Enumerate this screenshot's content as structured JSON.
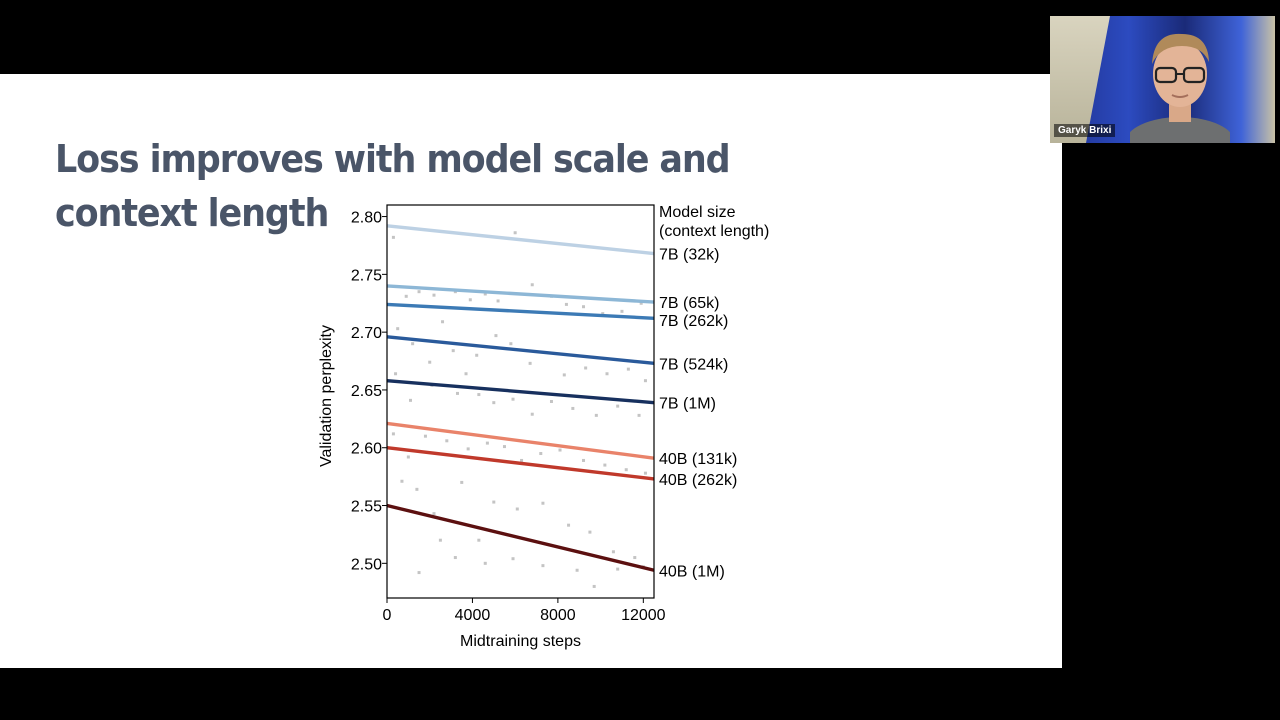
{
  "slide": {
    "title": "Loss improves with model scale and context length"
  },
  "video": {
    "participant_name": "Garyk Brixi"
  },
  "chart_data": {
    "type": "line",
    "xlabel": "Midtraining steps",
    "ylabel": "Validation perplexity",
    "xlim": [
      0,
      12500
    ],
    "ylim": [
      2.47,
      2.81
    ],
    "x_ticks": [
      0,
      4000,
      8000,
      12000
    ],
    "y_ticks": [
      2.5,
      2.55,
      2.6,
      2.65,
      2.7,
      2.75,
      2.8
    ],
    "legend_title_line1": "Model size",
    "legend_title_line2": "(context length)",
    "grid": false,
    "series": [
      {
        "name": "7B (32k)",
        "x": [
          0,
          12500
        ],
        "values": [
          2.792,
          2.768
        ],
        "color": "#bdd1e4"
      },
      {
        "name": "7B (65k)",
        "x": [
          0,
          12500
        ],
        "values": [
          2.74,
          2.726
        ],
        "color": "#8db7d6"
      },
      {
        "name": "7B (262k)",
        "x": [
          0,
          12500
        ],
        "values": [
          2.724,
          2.712
        ],
        "color": "#3c7ab5"
      },
      {
        "name": "7B (524k)",
        "x": [
          0,
          12500
        ],
        "values": [
          2.696,
          2.673
        ],
        "color": "#2a5a9b"
      },
      {
        "name": "7B (1M)",
        "x": [
          0,
          12500
        ],
        "values": [
          2.658,
          2.639
        ],
        "color": "#17305e"
      },
      {
        "name": "40B (131k)",
        "x": [
          0,
          12500
        ],
        "values": [
          2.621,
          2.591
        ],
        "color": "#e9836a"
      },
      {
        "name": "40B (262k)",
        "x": [
          0,
          12500
        ],
        "values": [
          2.6,
          2.573
        ],
        "color": "#c0392b"
      },
      {
        "name": "40B (1M)",
        "x": [
          0,
          12500
        ],
        "values": [
          2.55,
          2.494
        ],
        "color": "#5c1010"
      }
    ],
    "scatter_points": [
      [
        300,
        2.782
      ],
      [
        900,
        2.731
      ],
      [
        1500,
        2.735
      ],
      [
        2200,
        2.732
      ],
      [
        2600,
        2.709
      ],
      [
        3200,
        2.735
      ],
      [
        3900,
        2.728
      ],
      [
        4600,
        2.733
      ],
      [
        5200,
        2.727
      ],
      [
        6000,
        2.786
      ],
      [
        6800,
        2.741
      ],
      [
        7700,
        2.731
      ],
      [
        8400,
        2.724
      ],
      [
        9200,
        2.722
      ],
      [
        10100,
        2.716
      ],
      [
        11000,
        2.718
      ],
      [
        11900,
        2.725
      ],
      [
        500,
        2.703
      ],
      [
        1200,
        2.69
      ],
      [
        2000,
        2.674
      ],
      [
        3100,
        2.684
      ],
      [
        3700,
        2.664
      ],
      [
        4200,
        2.68
      ],
      [
        5100,
        2.697
      ],
      [
        5800,
        2.69
      ],
      [
        6700,
        2.673
      ],
      [
        7600,
        2.682
      ],
      [
        8300,
        2.663
      ],
      [
        9300,
        2.669
      ],
      [
        10300,
        2.664
      ],
      [
        11300,
        2.668
      ],
      [
        12100,
        2.658
      ],
      [
        400,
        2.664
      ],
      [
        1100,
        2.641
      ],
      [
        2100,
        2.654
      ],
      [
        3300,
        2.647
      ],
      [
        4300,
        2.646
      ],
      [
        5000,
        2.639
      ],
      [
        5900,
        2.642
      ],
      [
        6800,
        2.629
      ],
      [
        7700,
        2.64
      ],
      [
        8700,
        2.634
      ],
      [
        9800,
        2.628
      ],
      [
        10800,
        2.636
      ],
      [
        11800,
        2.628
      ],
      [
        300,
        2.612
      ],
      [
        1000,
        2.592
      ],
      [
        1800,
        2.61
      ],
      [
        2800,
        2.606
      ],
      [
        3800,
        2.599
      ],
      [
        4700,
        2.604
      ],
      [
        5500,
        2.601
      ],
      [
        6300,
        2.589
      ],
      [
        7200,
        2.595
      ],
      [
        8100,
        2.598
      ],
      [
        9200,
        2.589
      ],
      [
        10200,
        2.585
      ],
      [
        11200,
        2.581
      ],
      [
        12100,
        2.578
      ],
      [
        700,
        2.571
      ],
      [
        1400,
        2.564
      ],
      [
        2200,
        2.543
      ],
      [
        2500,
        2.52
      ],
      [
        3500,
        2.57
      ],
      [
        4300,
        2.52
      ],
      [
        5000,
        2.553
      ],
      [
        6100,
        2.547
      ],
      [
        7300,
        2.552
      ],
      [
        8500,
        2.533
      ],
      [
        9500,
        2.527
      ],
      [
        10600,
        2.51
      ],
      [
        11600,
        2.505
      ],
      [
        1500,
        2.492
      ],
      [
        3200,
        2.505
      ],
      [
        4600,
        2.5
      ],
      [
        5900,
        2.504
      ],
      [
        7300,
        2.498
      ],
      [
        8900,
        2.494
      ],
      [
        9700,
        2.48
      ],
      [
        10800,
        2.495
      ],
      [
        12000,
        2.497
      ]
    ]
  }
}
